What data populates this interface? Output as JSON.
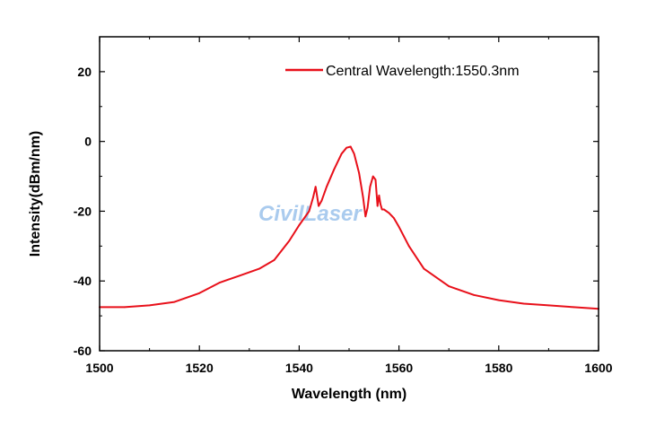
{
  "chart_data": {
    "type": "line",
    "title": "",
    "xlabel": "Wavelength (nm)",
    "ylabel": "Intensity(dBm/nm)",
    "xlim": [
      1500,
      1600
    ],
    "ylim": [
      -60,
      30
    ],
    "xticks": [
      1500,
      1520,
      1540,
      1560,
      1580,
      1600
    ],
    "yticks": [
      -60,
      -40,
      -20,
      0,
      20
    ],
    "xtick_labels": [
      "1500",
      "1520",
      "1540",
      "1560",
      "1580",
      "1600"
    ],
    "ytick_labels": [
      "-60",
      "-40",
      "-20",
      "0",
      "20"
    ],
    "grid": false,
    "legend_position": "top-right",
    "series": [
      {
        "name": "Central Wavelength:1550.3nm",
        "color": "#e8101a",
        "x": [
          1500,
          1505,
          1510,
          1515,
          1520,
          1524,
          1528,
          1532,
          1535,
          1538,
          1540,
          1542,
          1542.8,
          1543.3,
          1543.9,
          1544.5,
          1545.5,
          1547,
          1548.5,
          1549.5,
          1550.3,
          1551,
          1552,
          1552.8,
          1553.3,
          1553.7,
          1554.2,
          1554.8,
          1555.3,
          1555.7,
          1556,
          1556.3,
          1556.6,
          1557,
          1558,
          1559,
          1560,
          1562,
          1565,
          1570,
          1575,
          1580,
          1585,
          1590,
          1595,
          1600
        ],
        "values": [
          -47.5,
          -47.5,
          -47.0,
          -46.0,
          -43.5,
          -40.5,
          -38.5,
          -36.5,
          -34.0,
          -28.5,
          -24.0,
          -20.0,
          -16.0,
          -13.0,
          -18.5,
          -17.0,
          -13.0,
          -8.0,
          -3.5,
          -1.8,
          -1.5,
          -3.5,
          -9.0,
          -16.0,
          -21.5,
          -19.0,
          -13.0,
          -10.0,
          -11.0,
          -18.5,
          -15.5,
          -18.0,
          -19.5,
          -19.5,
          -20.5,
          -22.0,
          -24.5,
          -30.0,
          -36.5,
          -41.5,
          -44.0,
          -45.5,
          -46.5,
          -47.0,
          -47.5,
          -48.0
        ]
      }
    ],
    "watermark": "CivilLaser",
    "watermark_color": "#9cc3ec"
  }
}
